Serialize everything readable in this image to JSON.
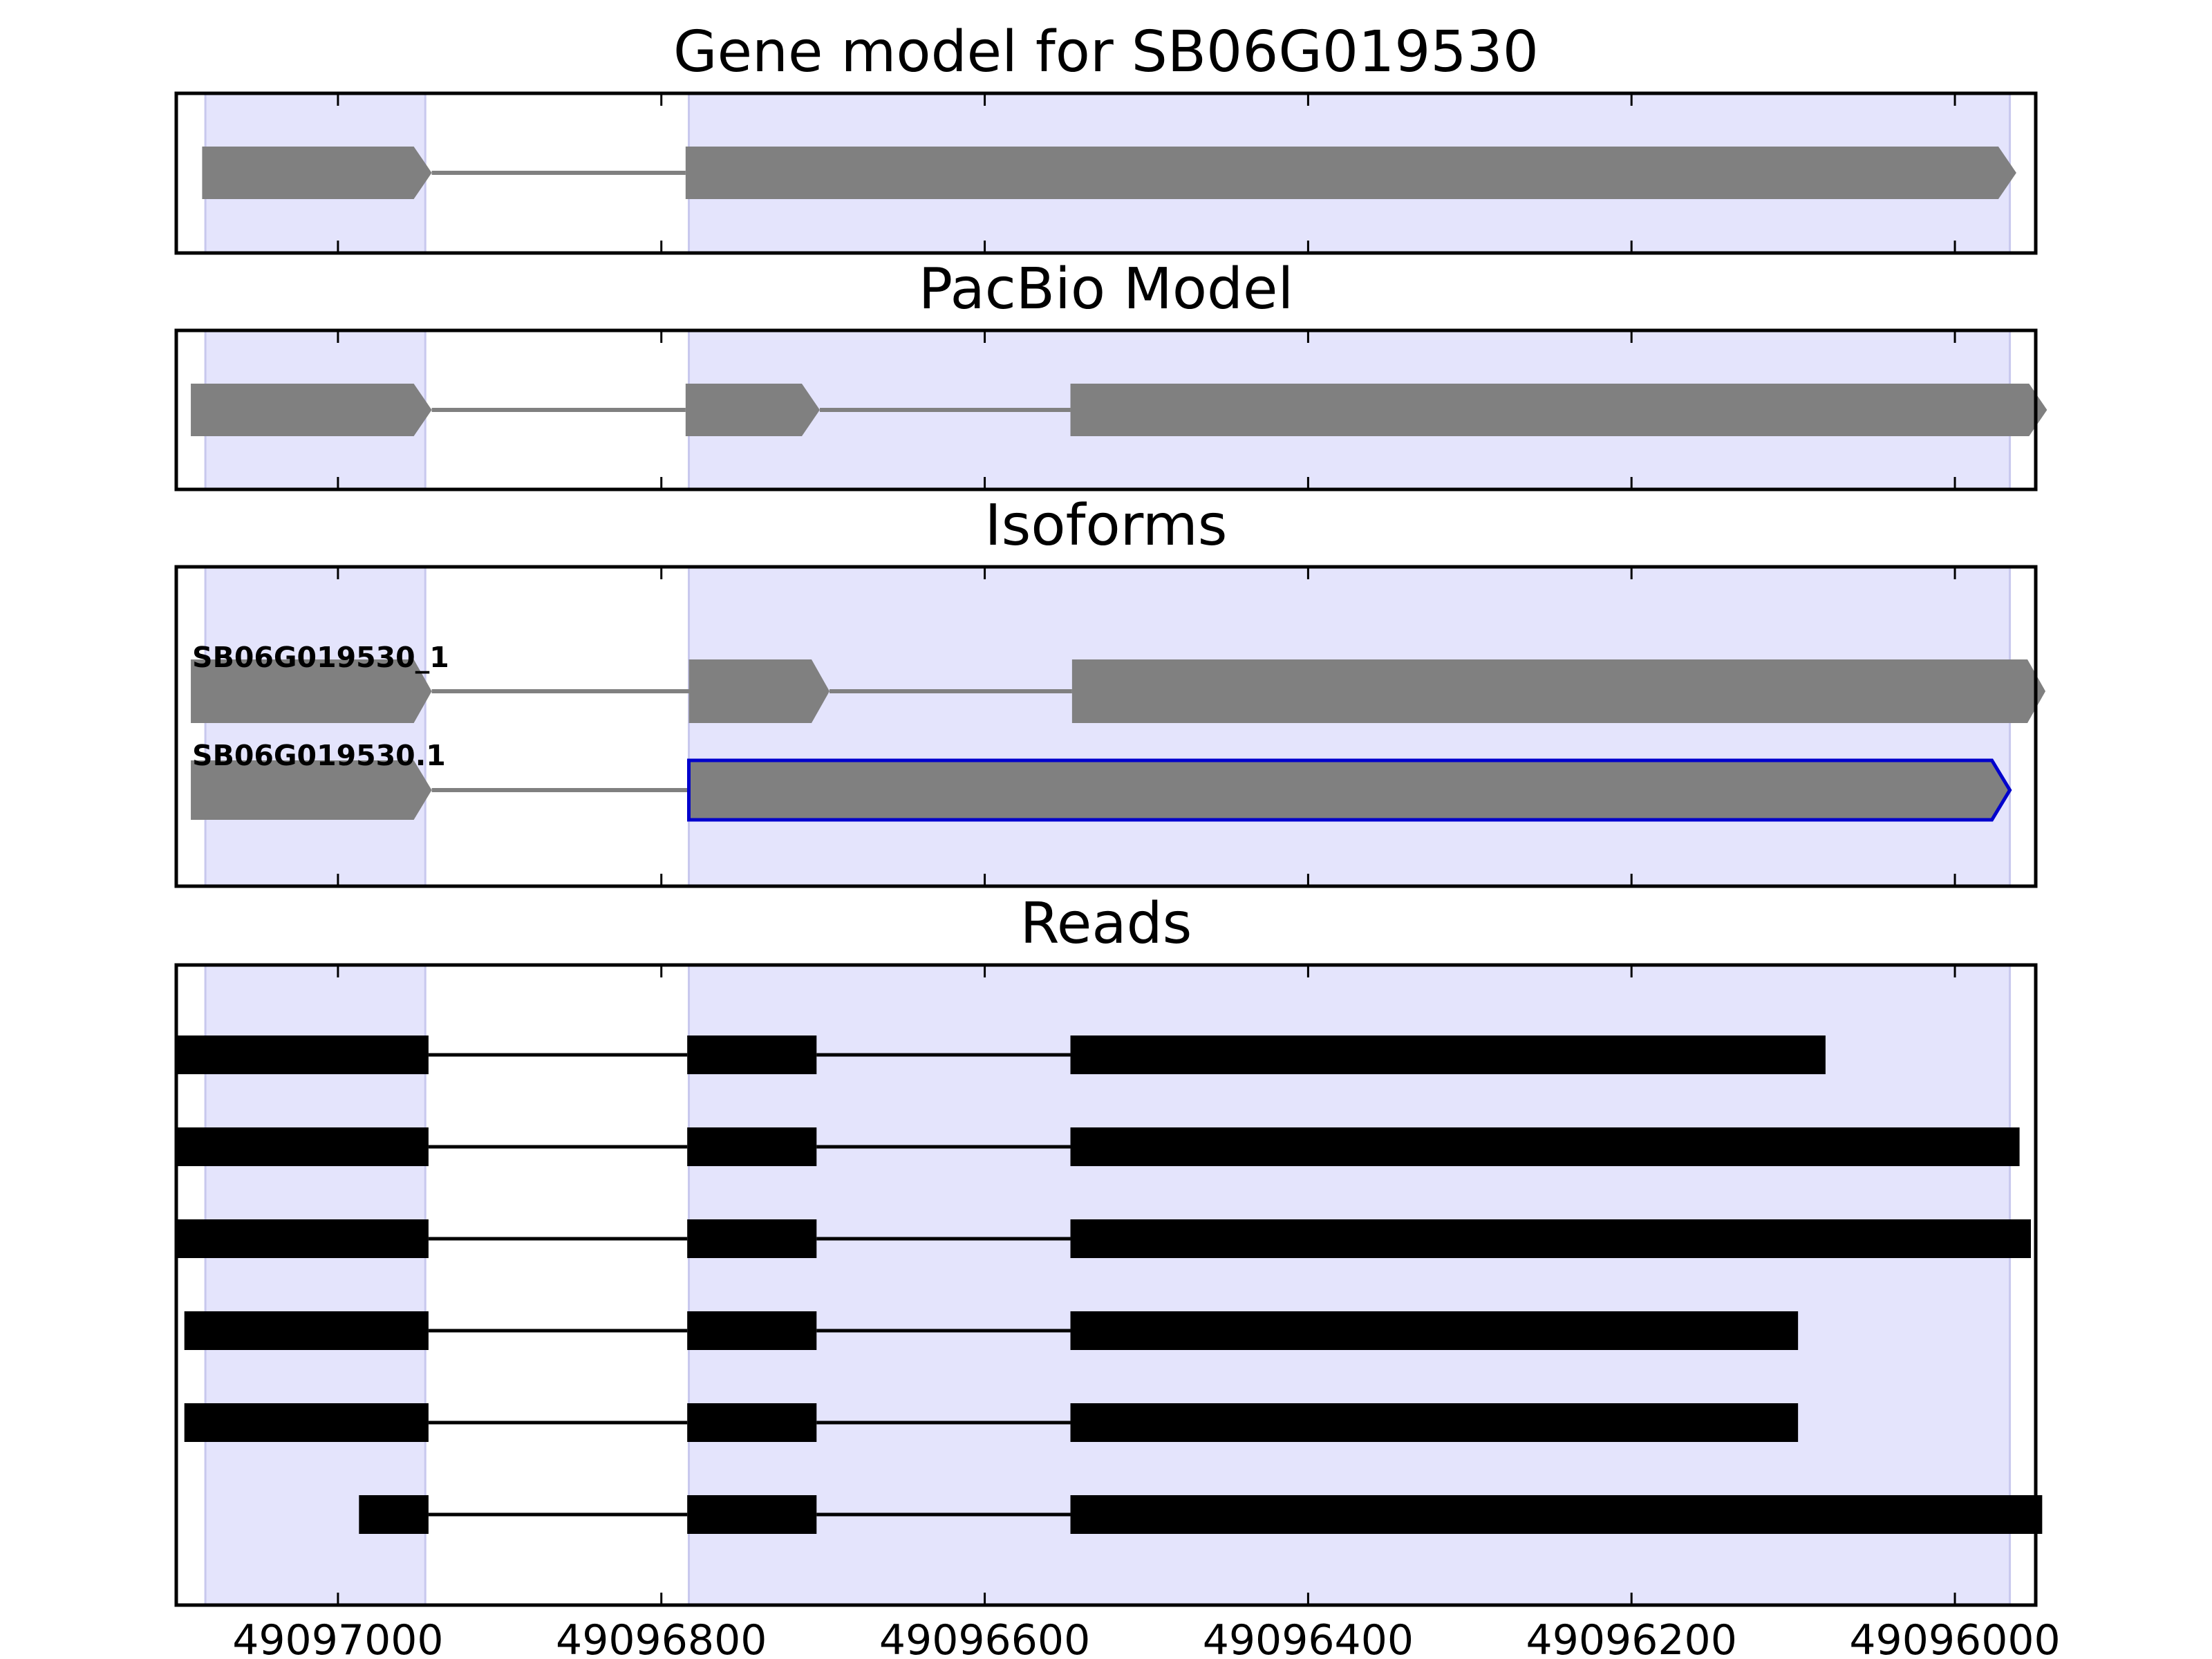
{
  "chart_data": {
    "type": "gene_model",
    "x_axis": {
      "reversed": true,
      "range": [
        49097100,
        49095950
      ],
      "ticks": [
        49097000,
        49096800,
        49096600,
        49096400,
        49096200,
        49096000
      ],
      "tick_labels": [
        "49097000",
        "49096800",
        "49096600",
        "49096400",
        "49096200",
        "49096000"
      ]
    },
    "highlight_regions": [
      [
        49097082,
        49096946
      ],
      [
        49096783,
        49095966
      ]
    ],
    "panels": [
      {
        "title": "Gene model for SB06G019530",
        "tracks": [
          {
            "label": "",
            "outlined": false,
            "exons": [
              [
                49097084,
                49096942
              ],
              [
                49096785,
                49095962
              ]
            ]
          }
        ]
      },
      {
        "title": "PacBio Model",
        "tracks": [
          {
            "label": "",
            "outlined": false,
            "exons": [
              [
                49097091,
                49096942
              ],
              [
                49096785,
                49096702
              ],
              [
                49096547,
                49095943
              ]
            ]
          }
        ]
      },
      {
        "title": "Isoforms",
        "tracks": [
          {
            "label": "SB06G019530_1",
            "outlined": false,
            "exons": [
              [
                49097091,
                49096942
              ],
              [
                49096783,
                49096696
              ],
              [
                49096546,
                49095944
              ]
            ]
          },
          {
            "label": "SB06G019530.1",
            "outlined": true,
            "exons": [
              [
                49097091,
                49096942
              ],
              [
                49096783,
                49095966
              ]
            ]
          }
        ]
      },
      {
        "title": "Reads",
        "tracks": [
          {
            "exons": [
              [
                49097101,
                49096944
              ],
              [
                49096784,
                49096704
              ],
              [
                49096547,
                49096080
              ]
            ]
          },
          {
            "exons": [
              [
                49097101,
                49096944
              ],
              [
                49096784,
                49096704
              ],
              [
                49096547,
                49095960
              ]
            ]
          },
          {
            "exons": [
              [
                49097101,
                49096944
              ],
              [
                49096784,
                49096704
              ],
              [
                49096547,
                49095953
              ]
            ]
          },
          {
            "exons": [
              [
                49097095,
                49096944
              ],
              [
                49096784,
                49096704
              ],
              [
                49096547,
                49096097
              ]
            ]
          },
          {
            "exons": [
              [
                49097095,
                49096944
              ],
              [
                49096784,
                49096704
              ],
              [
                49096547,
                49096097
              ]
            ]
          },
          {
            "exons": [
              [
                49096987,
                49096944
              ],
              [
                49096784,
                49096704
              ],
              [
                49096547,
                49095946
              ]
            ]
          }
        ]
      }
    ]
  },
  "colors": {
    "highlight": "#e4e4fc",
    "exon_gray": "#808080",
    "intron_gray": "#808080",
    "read_black": "#000000",
    "outline_blue": "#0000cc"
  }
}
